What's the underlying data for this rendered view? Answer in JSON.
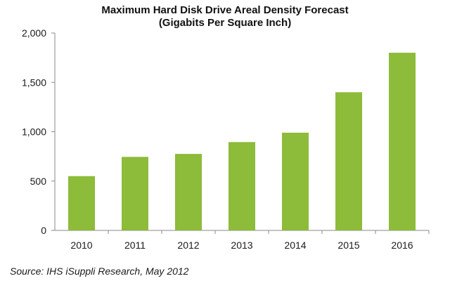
{
  "chart_data": {
    "type": "bar",
    "title": "Maximum Hard Disk Drive Areal Density Forecast",
    "subtitle": "(Gigabits Per Square Inch)",
    "xlabel": "",
    "ylabel": "",
    "categories": [
      "2010",
      "2011",
      "2012",
      "2013",
      "2014",
      "2015",
      "2016"
    ],
    "values": [
      550,
      745,
      775,
      895,
      990,
      1400,
      1800
    ],
    "ylim": [
      0,
      2000
    ],
    "yticks": [
      0,
      500,
      1000,
      1500,
      2000
    ],
    "ytick_labels": [
      "0",
      "500",
      "1,000",
      "1,500",
      "2,000"
    ],
    "bar_color": "#8dbb3a",
    "grid": false,
    "legend": "none"
  },
  "source": "Source: IHS iSuppli Research, May 2012"
}
